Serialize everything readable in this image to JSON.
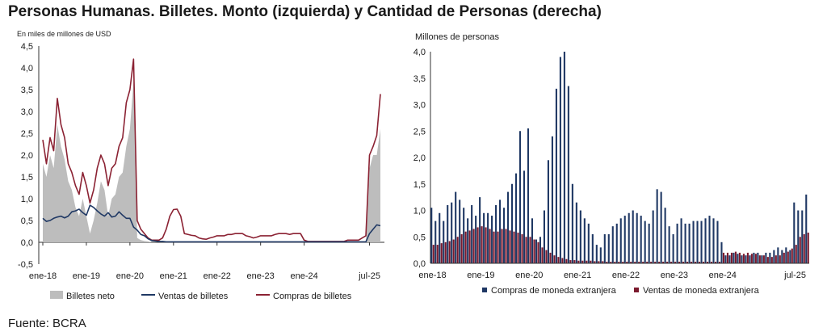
{
  "title": "Personas Humanas. Billetes. Monto (izquierda) y Cantidad de Personas (derecha)",
  "source": "Fuente: BCRA",
  "colors": {
    "area": "#bdbdbd",
    "ventas": "#1f3864",
    "compras": "#8b2233",
    "bar_compras": "#1f3864",
    "bar_ventas": "#7b1a2e"
  },
  "chart_data": [
    {
      "type": "line",
      "unit_label": "En miles de millones de USD",
      "ylim": [
        -0.5,
        4.5
      ],
      "yticks": [
        "-0,5",
        "0,0",
        "0,5",
        "1,0",
        "1,5",
        "2,0",
        "2,5",
        "3,0",
        "3,5",
        "4,0",
        "4,5"
      ],
      "xtick_labels": [
        "ene-18",
        "ene-19",
        "ene-20",
        "ene-21",
        "ene-22",
        "ene-23",
        "ene-24",
        "jul-25"
      ],
      "xtick_index": [
        0,
        12,
        24,
        36,
        48,
        60,
        72,
        90
      ],
      "x_start": "ene-18",
      "legend": [
        "Billetes neto",
        "Ventas de billetes",
        "Compras de billetes"
      ],
      "series": [
        {
          "name": "Billetes neto",
          "type": "area",
          "values": [
            1.8,
            1.5,
            2.0,
            1.7,
            2.7,
            2.2,
            1.9,
            1.4,
            1.2,
            0.8,
            0.6,
            1.0,
            0.6,
            0.2,
            0.5,
            0.9,
            1.4,
            1.2,
            0.6,
            1.0,
            1.1,
            1.5,
            1.6,
            2.2,
            2.6,
            3.7,
            0.1,
            0.05,
            0.03,
            0.02,
            0,
            0,
            0,
            0,
            0,
            0,
            0,
            0,
            0,
            0,
            0,
            0,
            0,
            0,
            0,
            0,
            0,
            0,
            0,
            0,
            0,
            0,
            0,
            0,
            0,
            0,
            0,
            0,
            0,
            0,
            0,
            0,
            0,
            0,
            0,
            0,
            0,
            0,
            0,
            0,
            0,
            0,
            0,
            0,
            0,
            0,
            0,
            0,
            0,
            0,
            0,
            0,
            0,
            0,
            0,
            0,
            0,
            0,
            0,
            0,
            1.7,
            2.0,
            2.0,
            2.6
          ]
        },
        {
          "name": "Ventas de billetes",
          "type": "line",
          "values": [
            0.55,
            0.48,
            0.5,
            0.55,
            0.58,
            0.6,
            0.56,
            0.6,
            0.7,
            0.72,
            0.76,
            0.68,
            0.62,
            0.85,
            0.8,
            0.72,
            0.65,
            0.6,
            0.68,
            0.58,
            0.6,
            0.7,
            0.62,
            0.55,
            0.55,
            0.35,
            0.28,
            0.18,
            0.15,
            0.08,
            0.04,
            0.03,
            0.02,
            0.02,
            0.01,
            0.01,
            0.01,
            0.01,
            0.01,
            0.01,
            0.01,
            0.01,
            0.01,
            0.01,
            0.01,
            0.01,
            0.01,
            0.01,
            0.01,
            0.01,
            0.01,
            0.01,
            0.01,
            0.01,
            0.01,
            0.01,
            0.01,
            0.01,
            0.01,
            0.01,
            0.01,
            0.01,
            0.01,
            0.01,
            0.01,
            0.01,
            0.01,
            0.01,
            0.01,
            0.01,
            0.01,
            0.01,
            0.01,
            0.01,
            0.01,
            0.01,
            0.01,
            0.01,
            0.01,
            0.01,
            0.01,
            0.01,
            0.01,
            0.01,
            0.01,
            0.01,
            0.01,
            0.01,
            0.01,
            0.01,
            0.2,
            0.3,
            0.4,
            0.38
          ]
        },
        {
          "name": "Compras de billetes",
          "type": "line",
          "values": [
            2.35,
            1.8,
            2.4,
            2.1,
            3.3,
            2.7,
            2.4,
            1.8,
            1.6,
            1.3,
            1.1,
            1.6,
            1.3,
            0.9,
            1.2,
            1.7,
            2.0,
            1.8,
            1.3,
            1.7,
            1.8,
            2.2,
            2.4,
            3.2,
            3.5,
            4.2,
            0.5,
            0.3,
            0.2,
            0.1,
            0.05,
            0.05,
            0.05,
            0.1,
            0.3,
            0.6,
            0.75,
            0.76,
            0.6,
            0.2,
            0.18,
            0.16,
            0.15,
            0.1,
            0.08,
            0.07,
            0.1,
            0.12,
            0.15,
            0.15,
            0.15,
            0.18,
            0.18,
            0.2,
            0.2,
            0.2,
            0.15,
            0.13,
            0.1,
            0.12,
            0.15,
            0.15,
            0.15,
            0.15,
            0.18,
            0.2,
            0.2,
            0.2,
            0.18,
            0.2,
            0.2,
            0.2,
            0.05,
            0.02,
            0.02,
            0.02,
            0.02,
            0.02,
            0.02,
            0.02,
            0.02,
            0.02,
            0.02,
            0.02,
            0.05,
            0.05,
            0.05,
            0.05,
            0.1,
            0.15,
            2.0,
            2.2,
            2.45,
            3.4
          ]
        }
      ]
    },
    {
      "type": "bar",
      "unit_label": "Millones de personas",
      "ylim": [
        0,
        4.0
      ],
      "yticks": [
        "0,0",
        "0,5",
        "1,0",
        "1,5",
        "2,0",
        "2,5",
        "3,0",
        "3,5",
        "4,0"
      ],
      "xtick_labels": [
        "ene-18",
        "ene-19",
        "ene-20",
        "ene-21",
        "ene-22",
        "ene-23",
        "ene-24",
        "jul-25"
      ],
      "xtick_index": [
        0,
        12,
        24,
        36,
        48,
        60,
        72,
        90
      ],
      "x_start": "ene-18",
      "legend": [
        "Compras de moneda extranjera",
        "Ventas de moneda extranjera"
      ],
      "series": [
        {
          "name": "Compras de moneda extranjera",
          "values": [
            1.05,
            0.8,
            0.95,
            0.8,
            1.1,
            1.15,
            1.35,
            1.2,
            1.05,
            0.85,
            1.1,
            0.9,
            1.25,
            0.95,
            0.95,
            0.9,
            1.1,
            1.2,
            1.05,
            1.35,
            1.5,
            1.7,
            2.5,
            1.75,
            2.55,
            0.85,
            0.45,
            0.5,
            1.0,
            1.95,
            2.4,
            3.3,
            3.9,
            4.0,
            3.35,
            1.5,
            1.15,
            1.0,
            0.85,
            0.75,
            0.55,
            0.35,
            0.3,
            0.55,
            0.55,
            0.7,
            0.75,
            0.85,
            0.9,
            0.95,
            1.0,
            0.95,
            0.9,
            0.8,
            0.75,
            1.0,
            1.4,
            1.35,
            1.05,
            0.7,
            0.55,
            0.75,
            0.85,
            0.75,
            0.75,
            0.8,
            0.8,
            0.8,
            0.85,
            0.9,
            0.85,
            0.8,
            0.4,
            0.15,
            0.15,
            0.2,
            0.18,
            0.15,
            0.15,
            0.15,
            0.2,
            0.2,
            0.15,
            0.2,
            0.2,
            0.25,
            0.3,
            0.25,
            0.3,
            0.25,
            1.15,
            1.0,
            1.0,
            1.3
          ]
        },
        {
          "name": "Ventas de moneda extranjera",
          "values": [
            0.35,
            0.35,
            0.38,
            0.4,
            0.42,
            0.45,
            0.5,
            0.55,
            0.6,
            0.62,
            0.65,
            0.68,
            0.7,
            0.68,
            0.65,
            0.6,
            0.6,
            0.65,
            0.65,
            0.62,
            0.6,
            0.58,
            0.55,
            0.5,
            0.5,
            0.45,
            0.4,
            0.3,
            0.25,
            0.2,
            0.15,
            0.12,
            0.1,
            0.08,
            0.06,
            0.06,
            0.05,
            0.05,
            0.05,
            0.05,
            0.04,
            0.04,
            0.04,
            0.03,
            0.03,
            0.03,
            0.03,
            0.03,
            0.03,
            0.03,
            0.03,
            0.03,
            0.03,
            0.03,
            0.03,
            0.03,
            0.03,
            0.03,
            0.03,
            0.03,
            0.03,
            0.03,
            0.03,
            0.03,
            0.03,
            0.03,
            0.03,
            0.03,
            0.03,
            0.03,
            0.03,
            0.03,
            0.2,
            0.2,
            0.2,
            0.22,
            0.2,
            0.18,
            0.2,
            0.18,
            0.18,
            0.15,
            0.15,
            0.12,
            0.12,
            0.15,
            0.15,
            0.2,
            0.22,
            0.28,
            0.35,
            0.5,
            0.55,
            0.58
          ]
        }
      ]
    }
  ]
}
